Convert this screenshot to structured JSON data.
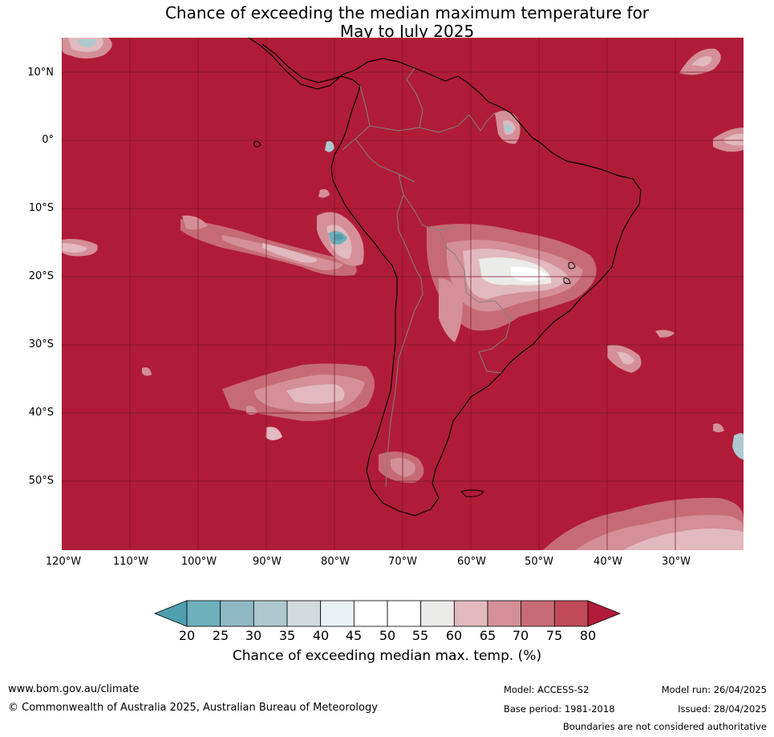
{
  "title": {
    "line1": "Chance of exceeding the median maximum temperature for",
    "line2": "May to July 2025"
  },
  "map": {
    "region": "South America",
    "lat_labels": [
      "10°N",
      "0°",
      "10°S",
      "20°S",
      "30°S",
      "40°S",
      "50°S"
    ],
    "lon_labels": [
      "120°W",
      "110°W",
      "100°W",
      "90°W",
      "80°W",
      "70°W",
      "60°W",
      "50°W",
      "40°W",
      "30°W"
    ],
    "colors": {
      "background": "#b01c38",
      "coastline": "#000000",
      "borders": "#808080",
      "gridlines": "#7a1426"
    }
  },
  "colorbar": {
    "ticks": [
      "20",
      "25",
      "30",
      "35",
      "40",
      "45",
      "50",
      "55",
      "60",
      "65",
      "70",
      "75",
      "80"
    ],
    "colors": [
      "#4fa0ae",
      "#6eb0bc",
      "#8eb8c4",
      "#adc8cf",
      "#d1dadd",
      "#e9f1f4",
      "#ffffff",
      "#ffffff",
      "#ebebea",
      "#e1b9be",
      "#d48f98",
      "#c66b75",
      "#c04a57",
      "#b01c38"
    ],
    "label": "Chance of exceeding median max. temp. (%)"
  },
  "footer": {
    "website": "www.bom.gov.au/climate",
    "copyright": "© Commonwealth of Australia 2025, Australian Bureau of Meteorology",
    "model": "Model: ACCESS-S2",
    "base_period": "Base period: 1981-2018",
    "model_run": "Model run: 26/04/2025",
    "issued": "Issued: 28/04/2025",
    "disclaimer": "Boundaries are not considered authoritative"
  }
}
